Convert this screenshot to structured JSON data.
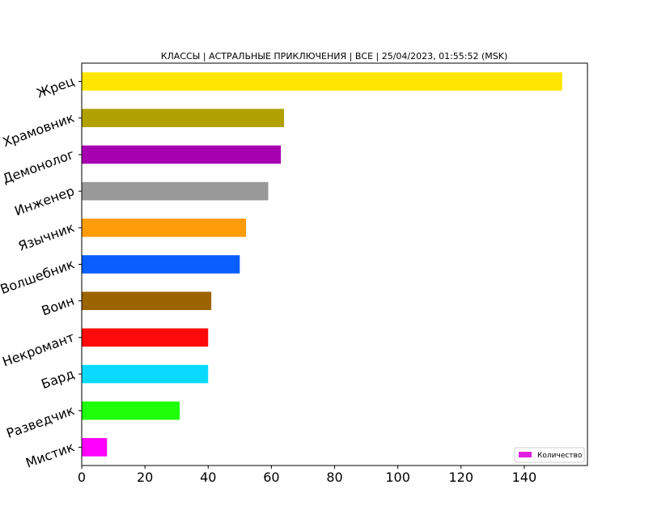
{
  "chart_data": {
    "type": "bar",
    "orientation": "horizontal",
    "title": "КЛАССЫ | АСТРАЛЬНЫЕ ПРИКЛЮЧЕНИЯ | ВСЕ | 25/04/2023, 01:55:52 (MSK)",
    "categories": [
      "Жрец",
      "Храмовник",
      "Демонолог",
      "Инженер",
      "Язычник",
      "Волшебник",
      "Воин",
      "Некромант",
      "Бард",
      "Разведчик",
      "Мистик"
    ],
    "values": [
      152,
      64,
      63,
      59,
      52,
      50,
      41,
      40,
      40,
      31,
      8
    ],
    "colors": [
      "#ffe600",
      "#b0a100",
      "#a600b0",
      "#999999",
      "#ff9c0a",
      "#0a5eff",
      "#9c6400",
      "#ff0a0a",
      "#0adaff",
      "#1fff0a",
      "#ff00ff"
    ],
    "xlim": [
      0,
      160
    ],
    "x_ticks": [
      0,
      20,
      40,
      60,
      80,
      100,
      120,
      140
    ],
    "grid": false,
    "legend": {
      "placement": "bottom-right",
      "label": "Количество",
      "color": "#e020e0"
    }
  }
}
